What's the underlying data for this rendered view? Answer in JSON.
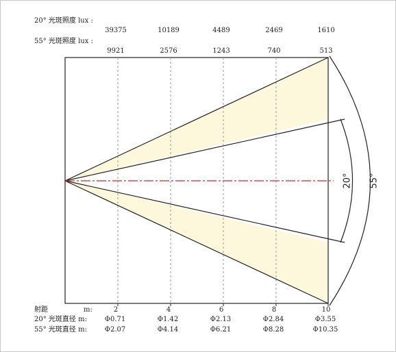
{
  "labels": {
    "lux20": "20° 光斑照度 lux :",
    "lux55": "55° 光斑照度 lux :",
    "distance": "射距",
    "distance_unit": "m:",
    "dia20": "20° 光斑直径 m:",
    "dia55": "55° 光斑直径 m:",
    "angle_narrow": "20°",
    "angle_wide": "55°"
  },
  "stations": [
    {
      "distance": "2",
      "lux20": "39375",
      "lux55": "9921",
      "dia20": "Φ0.71",
      "dia55": "Φ2.07"
    },
    {
      "distance": "4",
      "lux20": "10189",
      "lux55": "2576",
      "dia20": "Φ1.42",
      "dia55": "Φ4.14"
    },
    {
      "distance": "6",
      "lux20": "4489",
      "lux55": "1243",
      "dia20": "Φ2.13",
      "dia55": "Φ6.21"
    },
    {
      "distance": "8",
      "lux20": "2469",
      "lux55": "740",
      "dia20": "Φ2.84",
      "dia55": "Φ8.28"
    },
    {
      "distance": "10",
      "lux20": "1610",
      "lux55": "513",
      "dia20": "Φ3.55",
      "dia55": "Φ10.35"
    }
  ],
  "colors": {
    "beam_fill": "#fdf7dc",
    "axis_line": "#d9262c",
    "outline": "#222222",
    "guide": "#9a9a9a",
    "border": "#c8c8c8"
  }
}
